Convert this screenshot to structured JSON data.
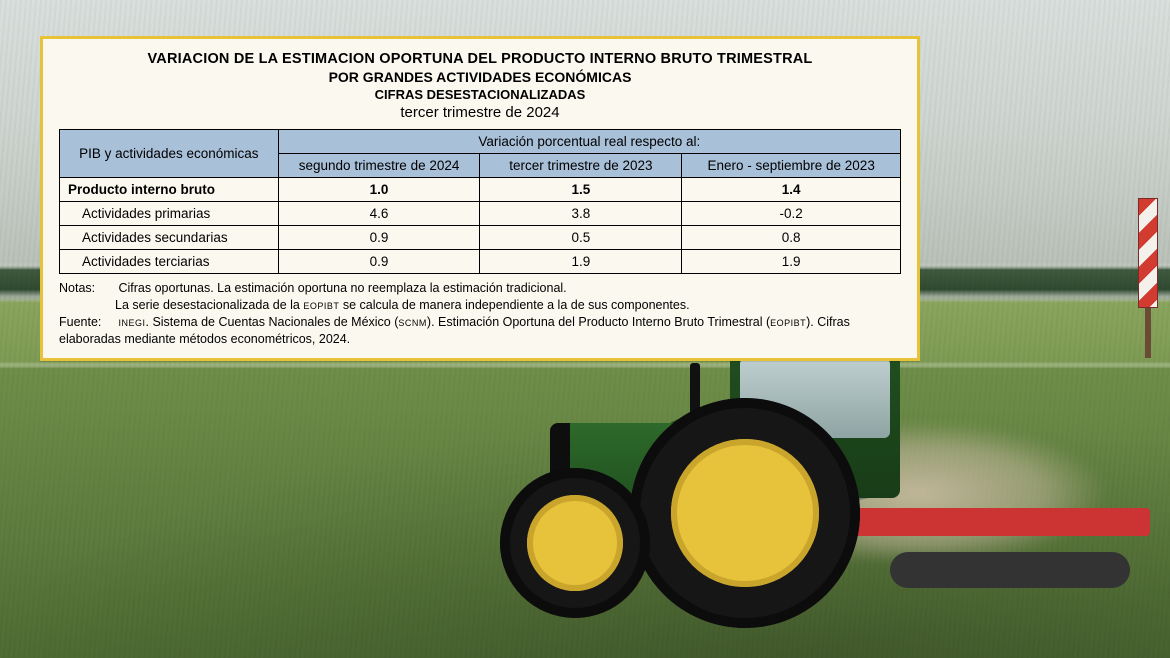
{
  "card": {
    "title1": "VARIACION DE LA ESTIMACION OPORTUNA DEL PRODUCTO INTERNO BRUTO TRIMESTRAL",
    "title2": "POR GRANDES ACTIVIDADES ECONÓMICAS",
    "title3": "CIFRAS DESESTACIONALIZADAS",
    "subtitle": "tercer trimestre de 2024",
    "border_color": "#e8c33a",
    "bg_color": "#fbf9ef"
  },
  "table": {
    "row_header": "PIB y actividades económicas",
    "span_header": "Variación porcentual real respecto al:",
    "cols": [
      "segundo trimestre de 2024",
      "tercer trimestre de 2023",
      "Enero - septiembre de 2023"
    ],
    "header_bg": "#a9c0d9",
    "border_color": "#000000",
    "rows": [
      {
        "label": "Producto interno bruto",
        "bold": true,
        "indent": false,
        "v": [
          "1.0",
          "1.5",
          "1.4"
        ]
      },
      {
        "label": "Actividades primarias",
        "bold": false,
        "indent": true,
        "v": [
          "4.6",
          "3.8",
          "-0.2"
        ]
      },
      {
        "label": "Actividades secundarias",
        "bold": false,
        "indent": true,
        "v": [
          "0.9",
          "0.5",
          "0.8"
        ]
      },
      {
        "label": "Actividades terciarias",
        "bold": false,
        "indent": true,
        "v": [
          "0.9",
          "1.9",
          "1.9"
        ]
      }
    ]
  },
  "notes": {
    "label_notas": "Notas:",
    "n1": "Cifras oportunas. La estimación oportuna no reemplaza la estimación tradicional.",
    "n2a": "La serie desestacionalizada de la ",
    "n2_sc": "EOPIBT",
    "n2b": " se calcula de manera independiente a la de sus componentes.",
    "label_fuente": "Fuente:",
    "f1a": "",
    "f1_sc1": "INEGI",
    "f1b": ". Sistema de Cuentas Nacionales de México (",
    "f1_sc2": "SCNM",
    "f1c": "). Estimación Oportuna del Producto Interno Bruto Trimestral (",
    "f1_sc3": "EOPIBT",
    "f1d": "). Cifras elaboradas mediante métodos econométricos, 2024."
  },
  "scene": {
    "sky_top": "#d9dfdc",
    "tree_band": "#2f4a30",
    "field_main": "#6f8e49",
    "tractor_green": "#1f4c1e",
    "rim_yellow": "#e7c23b",
    "implement_red": "#c33"
  }
}
